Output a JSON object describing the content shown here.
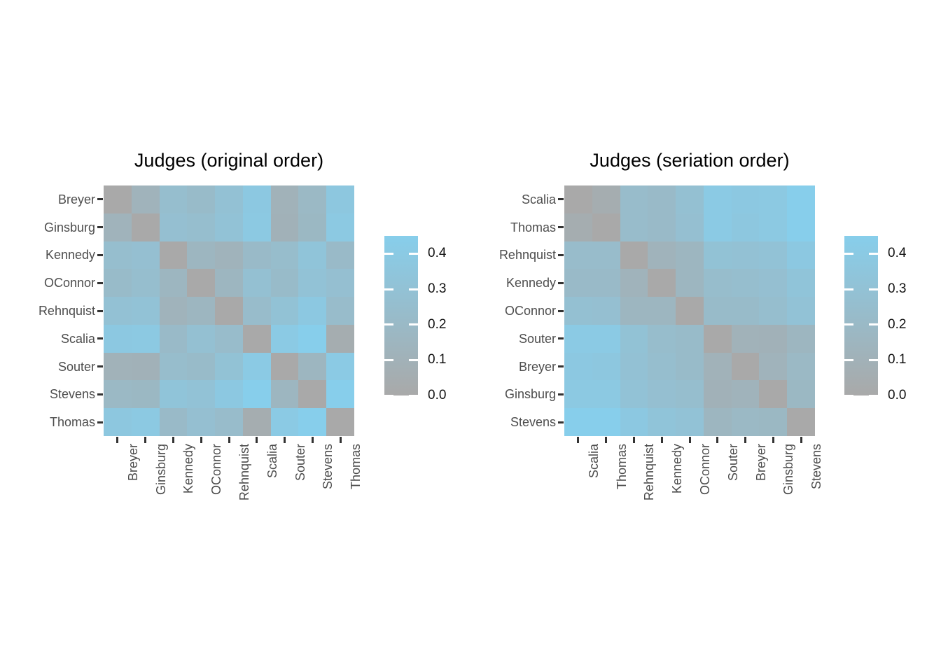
{
  "meta": {
    "background_color": "#ffffff",
    "axis_text_color": "#4d4d4d",
    "title_color": "#000000",
    "tick_mark_color": "#333333"
  },
  "chart_data": [
    {
      "type": "heatmap",
      "title": "Judges (original order)",
      "rows": [
        "Breyer",
        "Ginsburg",
        "Kennedy",
        "OConnor",
        "Rehnquist",
        "Scalia",
        "Souter",
        "Stevens",
        "Thomas"
      ],
      "cols": [
        "Breyer",
        "Ginsburg",
        "Kennedy",
        "OConnor",
        "Rehnquist",
        "Scalia",
        "Souter",
        "Stevens",
        "Thomas"
      ],
      "values": [
        [
          0.0,
          0.12,
          0.25,
          0.22,
          0.29,
          0.38,
          0.11,
          0.19,
          0.37
        ],
        [
          0.12,
          0.0,
          0.27,
          0.25,
          0.31,
          0.39,
          0.1,
          0.18,
          0.39
        ],
        [
          0.25,
          0.27,
          0.0,
          0.16,
          0.12,
          0.21,
          0.24,
          0.33,
          0.21
        ],
        [
          0.22,
          0.25,
          0.16,
          0.0,
          0.16,
          0.28,
          0.22,
          0.31,
          0.27
        ],
        [
          0.29,
          0.31,
          0.12,
          0.16,
          0.0,
          0.23,
          0.3,
          0.38,
          0.23
        ],
        [
          0.38,
          0.39,
          0.21,
          0.28,
          0.23,
          0.0,
          0.4,
          0.45,
          0.05
        ],
        [
          0.11,
          0.1,
          0.24,
          0.22,
          0.3,
          0.4,
          0.0,
          0.16,
          0.4
        ],
        [
          0.19,
          0.18,
          0.33,
          0.31,
          0.38,
          0.45,
          0.16,
          0.0,
          0.45
        ],
        [
          0.37,
          0.39,
          0.21,
          0.27,
          0.23,
          0.05,
          0.4,
          0.45,
          0.0
        ]
      ],
      "legend": {
        "ticks": [
          "0.0",
          "0.1",
          "0.2",
          "0.3",
          "0.4"
        ],
        "min": 0,
        "max": 0.45,
        "low_color": "#a9a9a9",
        "high_color": "#87ceeb",
        "position": "right"
      },
      "grid": false
    },
    {
      "type": "heatmap",
      "title": "Judges (seriation order)",
      "rows": [
        "Scalia",
        "Thomas",
        "Rehnquist",
        "Kennedy",
        "OConnor",
        "Souter",
        "Breyer",
        "Ginsburg",
        "Stevens"
      ],
      "cols": [
        "Scalia",
        "Thomas",
        "Rehnquist",
        "Kennedy",
        "OConnor",
        "Souter",
        "Breyer",
        "Ginsburg",
        "Stevens"
      ],
      "values": [
        [
          0.0,
          0.05,
          0.23,
          0.21,
          0.28,
          0.4,
          0.38,
          0.39,
          0.45
        ],
        [
          0.05,
          0.0,
          0.23,
          0.21,
          0.27,
          0.4,
          0.37,
          0.39,
          0.45
        ],
        [
          0.23,
          0.23,
          0.0,
          0.12,
          0.16,
          0.3,
          0.29,
          0.31,
          0.38
        ],
        [
          0.21,
          0.21,
          0.12,
          0.0,
          0.16,
          0.24,
          0.25,
          0.27,
          0.33
        ],
        [
          0.28,
          0.27,
          0.16,
          0.16,
          0.0,
          0.22,
          0.22,
          0.25,
          0.31
        ],
        [
          0.4,
          0.4,
          0.3,
          0.24,
          0.22,
          0.0,
          0.11,
          0.1,
          0.16
        ],
        [
          0.38,
          0.37,
          0.29,
          0.25,
          0.22,
          0.11,
          0.0,
          0.12,
          0.19
        ],
        [
          0.39,
          0.39,
          0.31,
          0.27,
          0.25,
          0.1,
          0.12,
          0.0,
          0.18
        ],
        [
          0.45,
          0.45,
          0.38,
          0.33,
          0.31,
          0.16,
          0.19,
          0.18,
          0.0
        ]
      ],
      "legend": {
        "ticks": [
          "0.0",
          "0.1",
          "0.2",
          "0.3",
          "0.4"
        ],
        "min": 0,
        "max": 0.45,
        "low_color": "#a9a9a9",
        "high_color": "#87ceeb",
        "position": "right"
      },
      "grid": false
    }
  ]
}
